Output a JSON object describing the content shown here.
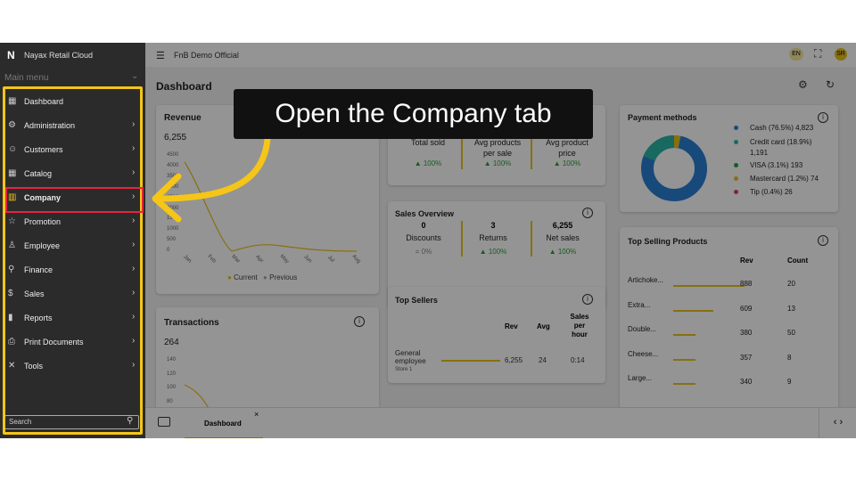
{
  "header": {
    "brand": "Nayax Retail Cloud",
    "workspace": "FnB Demo Official",
    "language": "EN",
    "avatar": "SR"
  },
  "sidebar": {
    "section": "Main menu",
    "items": [
      "Dashboard",
      "Administration",
      "Customers",
      "Catalog",
      "Company",
      "Promotion",
      "Employee",
      "Finance",
      "Sales",
      "Reports",
      "Print Documents",
      "Tools"
    ],
    "search": "Search"
  },
  "page": {
    "title": "Dashboard",
    "tab": "Dashboard"
  },
  "revenue": {
    "title": "Revenue",
    "total": "6,255",
    "yticks": [
      "4500",
      "4000",
      "3500",
      "3000",
      "2500",
      "2000",
      "1500",
      "1000",
      "500",
      "0"
    ],
    "months": [
      "Jan",
      "Feb",
      "Mar",
      "Apr",
      "May",
      "Jun",
      "Jul",
      "Aug"
    ],
    "legend": [
      "Current",
      "Previous"
    ]
  },
  "transactions": {
    "title": "Transactions",
    "total": "264",
    "yticks": [
      "140",
      "120",
      "100",
      "80"
    ]
  },
  "summary": {
    "columns": [
      {
        "label": "Total sold",
        "change": "▲ 100%"
      },
      {
        "label": "Avg products per sale",
        "change": "▲ 100%"
      },
      {
        "label": "Avg product price",
        "change": "▲ 100%"
      }
    ]
  },
  "sales_overview": {
    "title": "Sales Overview",
    "columns": [
      {
        "value": "0",
        "label": "Discounts",
        "change": "= 0%"
      },
      {
        "value": "3",
        "label": "Returns",
        "change": "▲ 100%"
      },
      {
        "value": "6,255",
        "label": "Net sales",
        "change": "▲ 100%"
      }
    ]
  },
  "top_sellers": {
    "title": "Top Sellers",
    "headers": [
      "Rev",
      "Avg",
      "Sales per hour"
    ],
    "rows": [
      {
        "name": "General employee",
        "store": "Store 1",
        "rev": "6,255",
        "avg": "24",
        "per_hour": "0:14"
      }
    ]
  },
  "payment_methods": {
    "title": "Payment methods",
    "items": [
      "Cash (76.5%) 4,823",
      "Credit card (18.9%) 1,191",
      "VISA (3.1%) 193",
      "Mastercard (1.2%) 74",
      "Tip (0.4%) 26"
    ]
  },
  "top_products": {
    "title": "Top Selling Products",
    "headers": [
      "Rev",
      "Count"
    ],
    "rows": [
      [
        "Artichoke...",
        "888",
        "20"
      ],
      [
        "Extra...",
        "609",
        "13"
      ],
      [
        "Double...",
        "380",
        "50"
      ],
      [
        "Cheese...",
        "357",
        "8"
      ],
      [
        "Large...",
        "340",
        "9"
      ]
    ]
  },
  "callout": "Open the Company tab"
}
